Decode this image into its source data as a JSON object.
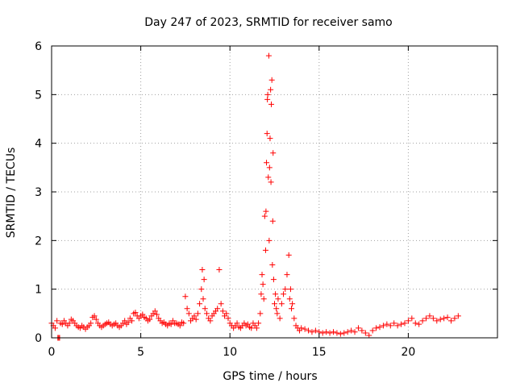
{
  "chart_data": {
    "type": "scatter",
    "title": "Day 247 of 2023, SRMTID for receiver samo",
    "xlabel": "GPS time / hours",
    "ylabel": "SRMTID / TECUs",
    "xlim": [
      0,
      25
    ],
    "ylim": [
      0,
      6
    ],
    "grid": true,
    "marker": "+",
    "marker_color": "#ff0000",
    "x_ticks": [
      0,
      5,
      10,
      15,
      20
    ],
    "x_tick_labels": [
      "0",
      "5",
      "10",
      "15",
      "20"
    ],
    "y_ticks": [
      0,
      1,
      2,
      3,
      4,
      5,
      6
    ],
    "y_tick_labels": [
      "0",
      "1",
      "2",
      "3",
      "4",
      "5",
      "6"
    ],
    "series": [
      {
        "name": "SRMTID",
        "x": [
          0.0,
          0.1,
          0.2,
          0.3,
          0.35,
          0.4,
          0.45,
          0.5,
          0.6,
          0.7,
          0.8,
          0.9,
          1.0,
          1.1,
          1.2,
          1.3,
          1.4,
          1.5,
          1.6,
          1.7,
          1.8,
          1.9,
          2.0,
          2.1,
          2.2,
          2.3,
          2.4,
          2.5,
          2.6,
          2.7,
          2.8,
          2.9,
          3.0,
          3.1,
          3.2,
          3.3,
          3.4,
          3.5,
          3.6,
          3.7,
          3.8,
          3.9,
          4.0,
          4.1,
          4.2,
          4.3,
          4.4,
          4.5,
          4.6,
          4.7,
          4.8,
          4.9,
          5.0,
          5.1,
          5.2,
          5.3,
          5.4,
          5.5,
          5.6,
          5.7,
          5.8,
          5.9,
          6.0,
          6.1,
          6.2,
          6.3,
          6.4,
          6.5,
          6.6,
          6.7,
          6.8,
          6.9,
          7.0,
          7.1,
          7.2,
          7.3,
          7.4,
          7.5,
          7.6,
          7.7,
          7.8,
          7.9,
          8.0,
          8.1,
          8.2,
          8.3,
          8.4,
          8.45,
          8.5,
          8.55,
          8.6,
          8.7,
          8.8,
          8.9,
          9.0,
          9.1,
          9.2,
          9.3,
          9.4,
          9.5,
          9.6,
          9.7,
          9.8,
          9.9,
          10.0,
          10.1,
          10.2,
          10.3,
          10.4,
          10.5,
          10.6,
          10.7,
          10.8,
          10.9,
          11.0,
          11.1,
          11.2,
          11.3,
          11.4,
          11.5,
          11.6,
          11.7,
          11.75,
          11.8,
          11.85,
          11.9,
          11.95,
          12.0,
          12.02,
          12.05,
          12.08,
          12.1,
          12.12,
          12.15,
          12.18,
          12.2,
          12.22,
          12.25,
          12.28,
          12.3,
          12.32,
          12.35,
          12.38,
          12.4,
          12.42,
          12.45,
          12.5,
          12.55,
          12.6,
          12.65,
          12.7,
          12.8,
          12.9,
          13.0,
          13.1,
          13.2,
          13.3,
          13.35,
          13.4,
          13.45,
          13.5,
          13.6,
          13.7,
          13.8,
          13.9,
          14.0,
          14.2,
          14.4,
          14.6,
          14.8,
          15.0,
          15.2,
          15.4,
          15.6,
          15.8,
          16.0,
          16.2,
          16.4,
          16.6,
          16.8,
          17.0,
          17.2,
          17.4,
          17.6,
          17.8,
          18.0,
          18.2,
          18.4,
          18.6,
          18.8,
          19.0,
          19.2,
          19.4,
          19.6,
          19.8,
          20.0,
          20.2,
          20.4,
          20.6,
          20.8,
          21.0,
          21.2,
          21.4,
          21.6,
          21.8,
          22.0,
          22.2,
          22.4,
          22.6,
          22.8
        ],
        "y": [
          0.3,
          0.25,
          0.2,
          0.35,
          0.0,
          0.0,
          0.0,
          0.3,
          0.28,
          0.35,
          0.3,
          0.25,
          0.3,
          0.38,
          0.35,
          0.3,
          0.25,
          0.22,
          0.2,
          0.25,
          0.22,
          0.18,
          0.22,
          0.25,
          0.3,
          0.42,
          0.45,
          0.38,
          0.3,
          0.25,
          0.22,
          0.25,
          0.28,
          0.3,
          0.32,
          0.28,
          0.25,
          0.28,
          0.3,
          0.25,
          0.22,
          0.25,
          0.3,
          0.35,
          0.28,
          0.32,
          0.4,
          0.35,
          0.5,
          0.52,
          0.45,
          0.4,
          0.45,
          0.48,
          0.42,
          0.4,
          0.35,
          0.38,
          0.45,
          0.5,
          0.55,
          0.48,
          0.4,
          0.35,
          0.3,
          0.32,
          0.28,
          0.25,
          0.3,
          0.28,
          0.35,
          0.3,
          0.3,
          0.28,
          0.25,
          0.32,
          0.3,
          0.85,
          0.6,
          0.5,
          0.35,
          0.4,
          0.45,
          0.38,
          0.5,
          0.7,
          1.0,
          1.4,
          0.8,
          1.2,
          0.6,
          0.5,
          0.4,
          0.35,
          0.45,
          0.5,
          0.55,
          0.6,
          1.4,
          0.7,
          0.55,
          0.45,
          0.5,
          0.4,
          0.3,
          0.25,
          0.2,
          0.25,
          0.3,
          0.22,
          0.2,
          0.25,
          0.3,
          0.25,
          0.28,
          0.22,
          0.2,
          0.3,
          0.25,
          0.2,
          0.3,
          0.5,
          0.9,
          1.3,
          1.1,
          0.8,
          2.5,
          1.8,
          2.6,
          3.6,
          4.2,
          4.9,
          5.0,
          3.3,
          5.8,
          2.0,
          3.5,
          4.1,
          5.1,
          3.2,
          4.8,
          5.3,
          1.5,
          2.4,
          3.8,
          1.2,
          0.7,
          0.9,
          0.6,
          0.5,
          0.8,
          0.4,
          0.7,
          0.9,
          1.0,
          1.3,
          1.7,
          0.8,
          1.0,
          0.6,
          0.7,
          0.4,
          0.25,
          0.2,
          0.15,
          0.2,
          0.18,
          0.15,
          0.12,
          0.15,
          0.12,
          0.1,
          0.12,
          0.1,
          0.12,
          0.1,
          0.08,
          0.1,
          0.12,
          0.15,
          0.12,
          0.2,
          0.15,
          0.1,
          0.05,
          0.15,
          0.2,
          0.22,
          0.25,
          0.28,
          0.25,
          0.3,
          0.25,
          0.28,
          0.3,
          0.35,
          0.4,
          0.3,
          0.28,
          0.35,
          0.4,
          0.45,
          0.4,
          0.35,
          0.38,
          0.4,
          0.42,
          0.35,
          0.4,
          0.45
        ]
      }
    ]
  }
}
